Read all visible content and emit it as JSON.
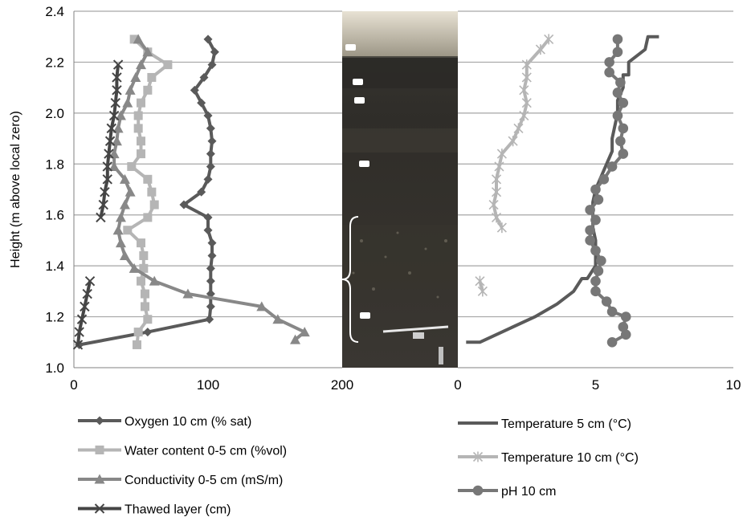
{
  "chart_data": [
    {
      "type": "line",
      "orientation": "vertical-profile",
      "ylabel": "Height (m above local zero)",
      "ylim": [
        1.0,
        2.4
      ],
      "xlim": [
        0,
        200
      ],
      "xticks": [
        "0",
        "100",
        "200"
      ],
      "yticks": [
        "1.0",
        "1.2",
        "1.4",
        "1.6",
        "1.8",
        "2.0",
        "2.2",
        "2.4"
      ],
      "grid": true,
      "legend_position": "bottom",
      "series": [
        {
          "name": "Oxygen 10 cm (% sat)",
          "color": "#5a5a5a",
          "marker": "diamond",
          "points": [
            [
              100,
              2.29
            ],
            [
              105,
              2.24
            ],
            [
              103,
              2.19
            ],
            [
              97,
              2.14
            ],
            [
              90,
              2.09
            ],
            [
              95,
              2.04
            ],
            [
              100,
              1.99
            ],
            [
              102,
              1.94
            ],
            [
              103,
              1.89
            ],
            [
              102,
              1.84
            ],
            [
              102,
              1.79
            ],
            [
              100,
              1.74
            ],
            [
              95,
              1.69
            ],
            [
              82,
              1.64
            ],
            [
              100,
              1.59
            ],
            [
              100,
              1.54
            ],
            [
              103,
              1.49
            ],
            [
              103,
              1.44
            ],
            [
              102,
              1.39
            ],
            [
              102,
              1.34
            ],
            [
              102,
              1.29
            ],
            [
              102,
              1.24
            ],
            [
              101,
              1.19
            ],
            [
              55,
              1.14
            ],
            [
              4,
              1.09
            ]
          ]
        },
        {
          "name": "Water content 0-5 cm (%vol)",
          "color": "#b5b5b5",
          "marker": "square",
          "points": [
            [
              45,
              2.29
            ],
            [
              55,
              2.24
            ],
            [
              70,
              2.19
            ],
            [
              58,
              2.14
            ],
            [
              55,
              2.09
            ],
            [
              50,
              2.04
            ],
            [
              48,
              1.99
            ],
            [
              48,
              1.94
            ],
            [
              50,
              1.89
            ],
            [
              50,
              1.84
            ],
            [
              43,
              1.79
            ],
            [
              55,
              1.74
            ],
            [
              58,
              1.69
            ],
            [
              60,
              1.64
            ],
            [
              55,
              1.59
            ],
            [
              40,
              1.54
            ],
            [
              50,
              1.49
            ],
            [
              52,
              1.44
            ],
            [
              52,
              1.39
            ],
            [
              50,
              1.34
            ],
            [
              53,
              1.29
            ],
            [
              53,
              1.24
            ],
            [
              55,
              1.19
            ],
            [
              48,
              1.14
            ],
            [
              47,
              1.09
            ]
          ]
        },
        {
          "name": "Conductivity 0-5 cm (mS/m)",
          "color": "#888888",
          "marker": "triangle",
          "points": [
            [
              48,
              2.29
            ],
            [
              55,
              2.24
            ],
            [
              50,
              2.19
            ],
            [
              46,
              2.14
            ],
            [
              42,
              2.09
            ],
            [
              40,
              2.04
            ],
            [
              35,
              1.99
            ],
            [
              33,
              1.94
            ],
            [
              32,
              1.89
            ],
            [
              30,
              1.84
            ],
            [
              30,
              1.79
            ],
            [
              38,
              1.74
            ],
            [
              42,
              1.69
            ],
            [
              38,
              1.64
            ],
            [
              35,
              1.59
            ],
            [
              33,
              1.54
            ],
            [
              35,
              1.49
            ],
            [
              38,
              1.44
            ],
            [
              45,
              1.39
            ],
            [
              60,
              1.34
            ],
            [
              85,
              1.29
            ],
            [
              140,
              1.24
            ],
            [
              152,
              1.19
            ],
            [
              172,
              1.14
            ],
            [
              165,
              1.11
            ]
          ]
        },
        {
          "name": "Thawed layer (cm)",
          "color": "#454545",
          "marker": "x",
          "points": [
            [
              33,
              2.19
            ],
            [
              32,
              2.14
            ],
            [
              32,
              2.09
            ],
            [
              31,
              2.04
            ],
            [
              30,
              1.99
            ],
            [
              28,
              1.94
            ],
            [
              27,
              1.89
            ],
            [
              26,
              1.84
            ],
            [
              25,
              1.79
            ],
            [
              25,
              1.74
            ],
            [
              23,
              1.69
            ],
            [
              22,
              1.64
            ],
            [
              20,
              1.59
            ],
            [
              12,
              1.34
            ],
            [
              10,
              1.29
            ],
            [
              8,
              1.24
            ],
            [
              6,
              1.19
            ],
            [
              4,
              1.14
            ],
            [
              3,
              1.09
            ]
          ]
        }
      ]
    },
    {
      "type": "line",
      "orientation": "vertical-profile",
      "ylim": [
        1.0,
        2.4
      ],
      "xlim": [
        0,
        10
      ],
      "xticks": [
        "0",
        "5",
        "10"
      ],
      "grid": true,
      "legend_position": "bottom",
      "series": [
        {
          "name": "Temperature 5 cm (°C)",
          "color": "#5a5a5a",
          "marker": "none",
          "points": [
            [
              7.3,
              2.3
            ],
            [
              6.9,
              2.3
            ],
            [
              6.8,
              2.25
            ],
            [
              6.2,
              2.2
            ],
            [
              6.2,
              2.15
            ],
            [
              6.0,
              2.15
            ],
            [
              6.0,
              2.1
            ],
            [
              5.8,
              2.05
            ],
            [
              5.8,
              2.0
            ],
            [
              5.7,
              1.95
            ],
            [
              5.6,
              1.9
            ],
            [
              5.6,
              1.85
            ],
            [
              5.4,
              1.8
            ],
            [
              5.2,
              1.75
            ],
            [
              5.0,
              1.7
            ],
            [
              4.9,
              1.65
            ],
            [
              4.9,
              1.6
            ],
            [
              4.9,
              1.55
            ],
            [
              5.0,
              1.5
            ],
            [
              5.0,
              1.45
            ],
            [
              5.0,
              1.4
            ],
            [
              4.7,
              1.35
            ],
            [
              4.5,
              1.35
            ],
            [
              4.2,
              1.3
            ],
            [
              3.6,
              1.25
            ],
            [
              2.8,
              1.2
            ],
            [
              1.8,
              1.15
            ],
            [
              0.8,
              1.1
            ],
            [
              0.3,
              1.1
            ]
          ]
        },
        {
          "name": "Temperature 10 cm (°C)",
          "color": "#b5b5b5",
          "marker": "star",
          "points": [
            [
              3.3,
              2.29
            ],
            [
              3.0,
              2.25
            ],
            [
              2.5,
              2.19
            ],
            [
              2.5,
              2.14
            ],
            [
              2.4,
              2.09
            ],
            [
              2.5,
              2.04
            ],
            [
              2.4,
              1.99
            ],
            [
              2.2,
              1.94
            ],
            [
              2.0,
              1.89
            ],
            [
              1.6,
              1.84
            ],
            [
              1.5,
              1.79
            ],
            [
              1.4,
              1.74
            ],
            [
              1.4,
              1.69
            ],
            [
              1.3,
              1.64
            ],
            [
              1.4,
              1.59
            ],
            [
              1.6,
              1.55
            ],
            [
              0.8,
              1.34
            ],
            [
              0.9,
              1.3
            ]
          ]
        },
        {
          "name": "pH 10 cm",
          "color": "#777777",
          "marker": "circle",
          "points": [
            [
              5.8,
              2.29
            ],
            [
              5.8,
              2.24
            ],
            [
              5.5,
              2.2
            ],
            [
              5.5,
              2.16
            ],
            [
              5.9,
              2.12
            ],
            [
              5.8,
              2.08
            ],
            [
              6.0,
              2.04
            ],
            [
              5.8,
              1.99
            ],
            [
              6.0,
              1.94
            ],
            [
              5.9,
              1.89
            ],
            [
              6.0,
              1.84
            ],
            [
              5.6,
              1.79
            ],
            [
              5.3,
              1.74
            ],
            [
              5.0,
              1.7
            ],
            [
              5.1,
              1.66
            ],
            [
              4.8,
              1.62
            ],
            [
              5.0,
              1.58
            ],
            [
              4.8,
              1.54
            ],
            [
              4.8,
              1.5
            ],
            [
              5.0,
              1.46
            ],
            [
              5.2,
              1.42
            ],
            [
              5.1,
              1.38
            ],
            [
              5.0,
              1.34
            ],
            [
              5.0,
              1.3
            ],
            [
              5.4,
              1.26
            ],
            [
              5.6,
              1.22
            ],
            [
              6.1,
              1.2
            ],
            [
              6.0,
              1.16
            ],
            [
              6.1,
              1.13
            ],
            [
              5.6,
              1.1
            ]
          ]
        }
      ]
    }
  ],
  "colors": {
    "grid": "#a6a6a6",
    "axis": "#808080",
    "bracket": "#ffffff",
    "photo_bg": "#2b2a27",
    "grass": "#d9d3c4"
  },
  "photo": {
    "description_icon": "soil-profile-photo"
  }
}
